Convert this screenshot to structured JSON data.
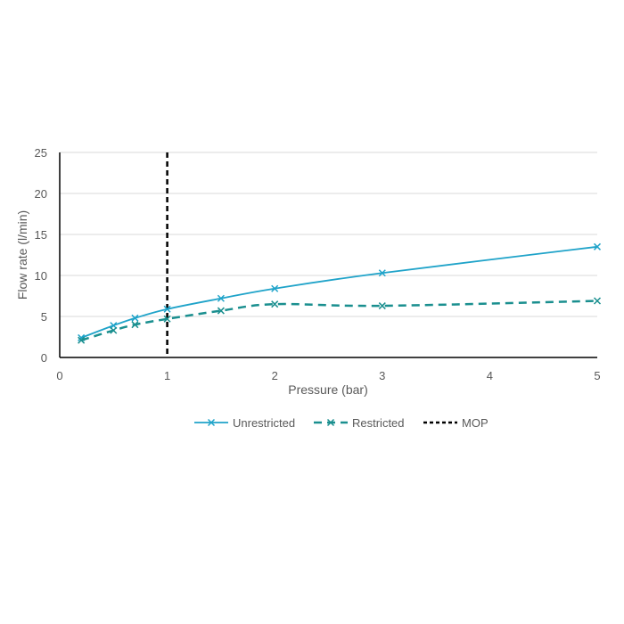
{
  "chart_data": {
    "type": "line",
    "title": "",
    "xlabel": "Pressure (bar)",
    "ylabel": "Flow rate (l/min)",
    "xlim": [
      0,
      5
    ],
    "ylim": [
      0,
      25
    ],
    "xticks": [
      "0",
      "1",
      "2",
      "3",
      "4",
      "5"
    ],
    "yticks": [
      "0",
      "5",
      "10",
      "15",
      "20",
      "25"
    ],
    "grid": "horizontal",
    "legend_position": "bottom",
    "series": [
      {
        "name": "Unrestricted",
        "style": "solid",
        "marker": "x",
        "color": "#1fa3c9",
        "x": [
          0.2,
          0.5,
          0.7,
          1.0,
          1.5,
          2.0,
          3.0,
          5.0
        ],
        "y": [
          2.4,
          3.9,
          4.8,
          5.9,
          7.2,
          8.4,
          10.3,
          13.5
        ]
      },
      {
        "name": "Restricted",
        "style": "dashed",
        "marker": "x",
        "color": "#1a8f8f",
        "x": [
          0.2,
          0.5,
          0.7,
          1.0,
          1.5,
          2.0,
          3.0,
          5.0
        ],
        "y": [
          2.1,
          3.3,
          4.0,
          4.7,
          5.7,
          6.5,
          6.3,
          6.9
        ]
      }
    ],
    "reference_lines": [
      {
        "name": "MOP",
        "x": 1,
        "style": "dashed",
        "color": "#000000"
      }
    ]
  }
}
